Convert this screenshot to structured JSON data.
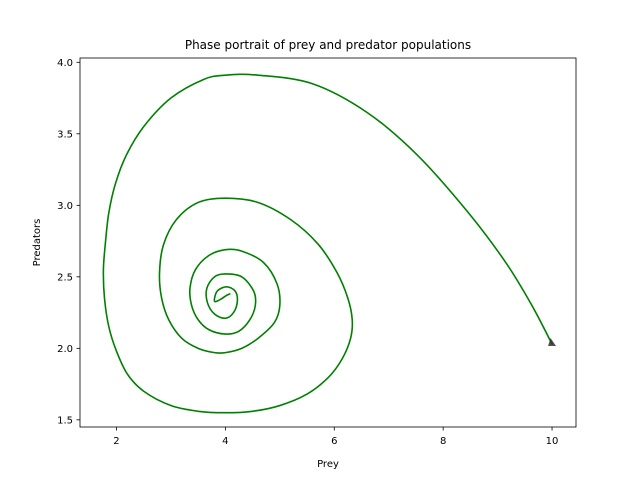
{
  "chart_data": {
    "type": "line",
    "title": "Phase portrait of prey and predator populations",
    "xlabel": "Prey",
    "ylabel": "Predators",
    "xlim": [
      1.33,
      10.44
    ],
    "ylim": [
      1.45,
      4.03
    ],
    "xticks": [
      2,
      4,
      6,
      8,
      10
    ],
    "yticks": [
      1.5,
      2.0,
      2.5,
      3.0,
      3.5,
      4.0
    ],
    "xtick_labels": [
      "2",
      "4",
      "6",
      "8",
      "10"
    ],
    "ytick_labels": [
      "1.5",
      "2.0",
      "2.5",
      "3.0",
      "3.5",
      "4.0"
    ],
    "grid": false,
    "line_color": "#008000",
    "marker_color": "#333333",
    "series": [
      {
        "x": [
          10.0,
          9.63,
          9.15,
          8.46,
          7.53,
          6.6,
          5.6,
          4.6,
          4.0,
          3.6,
          3.0,
          2.5,
          2.18,
          1.98,
          1.86,
          1.8,
          1.76,
          1.78,
          1.86,
          2.0,
          2.2,
          2.5,
          3.0,
          3.5,
          4.0,
          4.5,
          5.0,
          5.5,
          5.9,
          6.15,
          6.3,
          6.33,
          6.25,
          6.05,
          5.7,
          5.2,
          4.6,
          4.0,
          3.5,
          3.1,
          2.86,
          2.79,
          2.83,
          2.96,
          3.2,
          3.5,
          3.8,
          4.0,
          4.3,
          4.6,
          4.9,
          5.0,
          4.95,
          4.7,
          4.3,
          4.0,
          3.7,
          3.45,
          3.35,
          3.38,
          3.5,
          3.7,
          4.0,
          4.25,
          4.45,
          4.55,
          4.52,
          4.3,
          4.0,
          3.8,
          3.66,
          3.67,
          3.8,
          4.0,
          4.15,
          4.22,
          4.18,
          4.02,
          3.85,
          3.8,
          3.9,
          4.02,
          4.08
        ],
        "y": [
          2.03,
          2.3,
          2.6,
          2.95,
          3.35,
          3.65,
          3.85,
          3.91,
          3.91,
          3.88,
          3.75,
          3.55,
          3.35,
          3.15,
          2.95,
          2.75,
          2.55,
          2.35,
          2.15,
          1.98,
          1.82,
          1.7,
          1.6,
          1.56,
          1.55,
          1.56,
          1.6,
          1.68,
          1.8,
          1.93,
          2.07,
          2.2,
          2.35,
          2.53,
          2.73,
          2.9,
          3.02,
          3.05,
          3.02,
          2.9,
          2.72,
          2.52,
          2.35,
          2.2,
          2.07,
          2.0,
          1.97,
          1.97,
          2.0,
          2.07,
          2.18,
          2.3,
          2.45,
          2.6,
          2.68,
          2.69,
          2.65,
          2.55,
          2.42,
          2.3,
          2.2,
          2.13,
          2.1,
          2.12,
          2.2,
          2.3,
          2.4,
          2.5,
          2.52,
          2.5,
          2.42,
          2.32,
          2.24,
          2.21,
          2.25,
          2.33,
          2.4,
          2.43,
          2.4,
          2.33,
          2.34,
          2.37,
          2.38
        ]
      }
    ]
  }
}
